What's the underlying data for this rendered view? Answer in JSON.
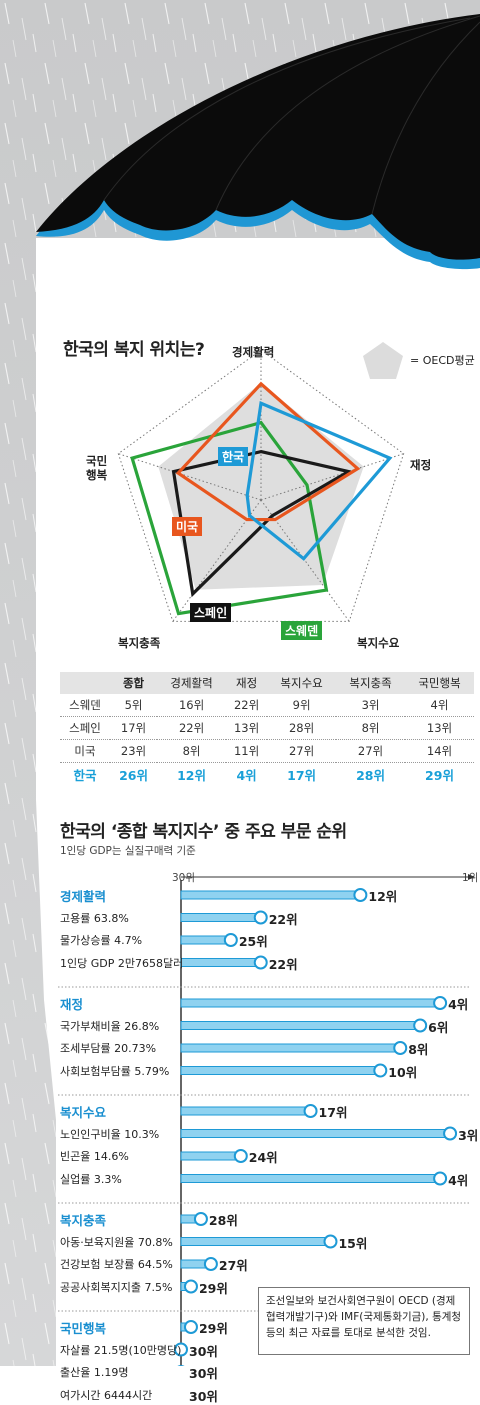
{
  "radar": {
    "title": "한국의 복지 위치는?",
    "legend_label": "= OECD평균",
    "axes": [
      "경제활력",
      "재정",
      "복지수요",
      "복지충족",
      "국민\n행복"
    ],
    "country_labels": {
      "korea": "한국",
      "usa": "미국",
      "spain": "스페인",
      "sweden": "스웨덴"
    }
  },
  "table": {
    "headers": [
      "",
      "종합",
      "경제활력",
      "재정",
      "복지수요",
      "복지충족",
      "국민행복"
    ],
    "rows": [
      [
        "스웨덴",
        "5위",
        "16위",
        "22위",
        "9위",
        "3위",
        "4위"
      ],
      [
        "스페인",
        "17위",
        "22위",
        "13위",
        "28위",
        "8위",
        "13위"
      ],
      [
        "미국",
        "23위",
        "8위",
        "11위",
        "27위",
        "27위",
        "14위"
      ],
      [
        "한국",
        "26위",
        "12위",
        "4위",
        "17위",
        "28위",
        "29위"
      ]
    ]
  },
  "bars_section": {
    "title": "한국의 ‘종합 복지지수’ 중 주요 부문 순위",
    "subtitle": "1인당 GDP는 실질구매력 기준",
    "axis_left": "30위",
    "axis_right": "1위",
    "note": "조선일보와 보건사회연구원이 OECD (경제협력개발기구)와 IMF(국제통화기금), 통계청 등의 최근 자료를 토대로 분석한 것임."
  },
  "chart_data": [
    {
      "type": "radar",
      "title": "한국의 복지 위치는?",
      "axes": [
        "경제활력",
        "재정",
        "복지수요",
        "복지충족",
        "국민행복"
      ],
      "note": "values are OECD ranks (1 = outermost); shaded area = OECD평균",
      "series": [
        {
          "name": "스웨덴",
          "color": "#2aa43a",
          "values": [
            16,
            22,
            9,
            3,
            4
          ]
        },
        {
          "name": "스페인",
          "color": "#1a1a1a",
          "values": [
            22,
            13,
            28,
            8,
            13
          ]
        },
        {
          "name": "미국",
          "color": "#e8561e",
          "values": [
            8,
            11,
            27,
            27,
            14
          ]
        },
        {
          "name": "한국",
          "color": "#1e9ad6",
          "values": [
            12,
            4,
            17,
            28,
            29
          ]
        }
      ]
    },
    {
      "type": "bar",
      "title": "한국의 ‘종합 복지지수’ 중 주요 부문 순위",
      "subtitle": "1인당 GDP는 실질구매력 기준",
      "xlim": [
        30,
        1
      ],
      "groups": [
        {
          "name": "경제활력",
          "rank": 12,
          "items": [
            {
              "label": "고용률 63.8%",
              "rank": 22
            },
            {
              "label": "물가상승률 4.7%",
              "rank": 25
            },
            {
              "label": "1인당 GDP 2만7658달러",
              "rank": 22
            }
          ]
        },
        {
          "name": "재정",
          "rank": 4,
          "items": [
            {
              "label": "국가부채비율 26.8%",
              "rank": 6
            },
            {
              "label": "조세부담률 20.73%",
              "rank": 8
            },
            {
              "label": "사회보험부담률 5.79%",
              "rank": 10
            }
          ]
        },
        {
          "name": "복지수요",
          "rank": 17,
          "items": [
            {
              "label": "노인인구비율 10.3%",
              "rank": 3
            },
            {
              "label": "빈곤율 14.6%",
              "rank": 24
            },
            {
              "label": "실업률 3.3%",
              "rank": 4
            }
          ]
        },
        {
          "name": "복지충족",
          "rank": 28,
          "items": [
            {
              "label": "아동·보육지원율 70.8%",
              "rank": 15
            },
            {
              "label": "건강보험 보장률 64.5%",
              "rank": 27
            },
            {
              "label": "공공사회복지지출 7.5%",
              "rank": 29
            }
          ]
        },
        {
          "name": "국민행복",
          "rank": 29,
          "items": [
            {
              "label": "자살률 21.5명(10만명당)",
              "rank": 30
            },
            {
              "label": "출산율 1.19명",
              "rank": 30
            },
            {
              "label": "여가시간 6444시간",
              "rank": 30
            }
          ]
        }
      ]
    }
  ]
}
